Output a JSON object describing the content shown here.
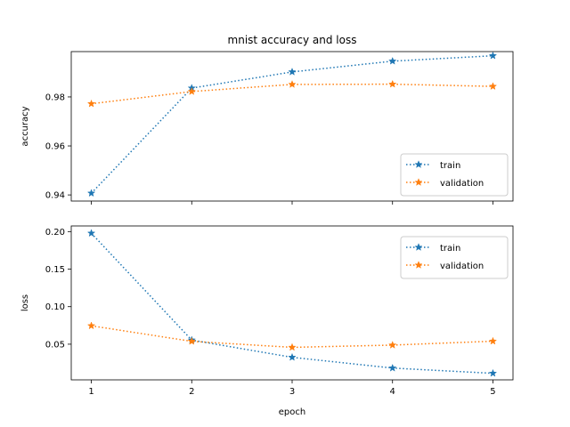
{
  "chart_data": [
    {
      "type": "line",
      "title": "mnist accuracy and loss",
      "xlabel": "",
      "ylabel": "accuracy",
      "x": [
        1,
        2,
        3,
        4,
        5
      ],
      "xticks": [
        1,
        2,
        3,
        4,
        5
      ],
      "xtick_labels_shown": false,
      "ylim": [
        0.9375,
        0.9985
      ],
      "yticks": [
        0.94,
        0.96,
        0.98
      ],
      "ytick_labels": [
        "0.94",
        "0.96",
        "0.98"
      ],
      "grid": false,
      "legend_position": "lower-right",
      "series": [
        {
          "name": "train",
          "color": "#1f77b4",
          "linestyle": "dotted",
          "marker": "star",
          "values": [
            0.9407,
            0.9836,
            0.9902,
            0.9946,
            0.9968
          ]
        },
        {
          "name": "validation",
          "color": "#ff7f0e",
          "linestyle": "dotted",
          "marker": "star",
          "values": [
            0.9772,
            0.9822,
            0.9851,
            0.9852,
            0.9843
          ]
        }
      ]
    },
    {
      "type": "line",
      "title": "",
      "xlabel": "epoch",
      "ylabel": "loss",
      "x": [
        1,
        2,
        3,
        4,
        5
      ],
      "xticks": [
        1,
        2,
        3,
        4,
        5
      ],
      "xtick_labels": [
        "1",
        "2",
        "3",
        "4",
        "5"
      ],
      "ylim": [
        0.0025,
        0.2075
      ],
      "yticks": [
        0.05,
        0.1,
        0.15,
        0.2
      ],
      "ytick_labels": [
        "0.05",
        "0.10",
        "0.15",
        "0.20"
      ],
      "grid": false,
      "legend_position": "upper-right",
      "series": [
        {
          "name": "train",
          "color": "#1f77b4",
          "linestyle": "dotted",
          "marker": "star",
          "values": [
            0.1978,
            0.0555,
            0.0325,
            0.0182,
            0.0112
          ]
        },
        {
          "name": "validation",
          "color": "#ff7f0e",
          "linestyle": "dotted",
          "marker": "star",
          "values": [
            0.0745,
            0.0538,
            0.0458,
            0.0488,
            0.054
          ]
        }
      ]
    }
  ]
}
